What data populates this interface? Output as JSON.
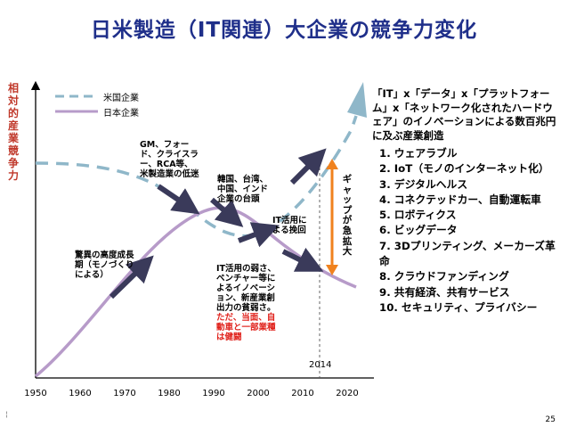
{
  "title": "日米製造（IT関連）大企業の競争力変化",
  "y_axis_label": "相対的産業競争力",
  "legend": [
    {
      "label": "米国企業",
      "color": "#8fb7c9",
      "style": "dashed"
    },
    {
      "label": "日本企業",
      "color": "#b79bc9",
      "style": "solid"
    }
  ],
  "x_ticks": [
    "1950",
    "1960",
    "1970",
    "1980",
    "1990",
    "2000",
    "2010",
    "2020"
  ],
  "marker_year": "2014",
  "annotations": {
    "growth": "驚異の高度成長期（モノづくりによる）",
    "us_decline": "GM、フォード、クライスラー、RCA等、米製造業の低迷",
    "asia_rise": "韓国、台湾、中国、インド企業の台頭",
    "it_recovery": "IT活用による挽回",
    "jp_weak_black": "IT活用の弱さ、ベンチャー等によるイノベーション、新産業創出力の貧弱さ。",
    "jp_weak_red": "ただ、当面、自動車と一部業種は健闘",
    "gap": "ギャップが急拡大"
  },
  "right_panel": {
    "heading": "「IT」x「データ」x「プラットフォーム」x「ネットワーク化されたハードウェア」のイノベーションによる数百兆円に及ぶ産業創造",
    "items": [
      "1. ウェアラブル",
      "2. IoT（モノのインターネット化）",
      "3. デジタルヘルス",
      "4. コネクテッドカー、自動運転車",
      "5. ロボティクス",
      "6. ビッグデータ",
      "7. 3Dプリンティング、メーカーズ革命",
      "8. クラウドファンディング",
      "9. 共有経済、共有サービス",
      "10. セキュリティ、プライバシー"
    ]
  },
  "colors": {
    "title": "#1f2f8a",
    "us": "#8fb7c9",
    "jp": "#b79bc9",
    "arrow": "#3a3a5a",
    "gap_arrow": "#f0821e",
    "red": "#e0201a"
  },
  "page_number": "25",
  "corner_text": "¦"
}
